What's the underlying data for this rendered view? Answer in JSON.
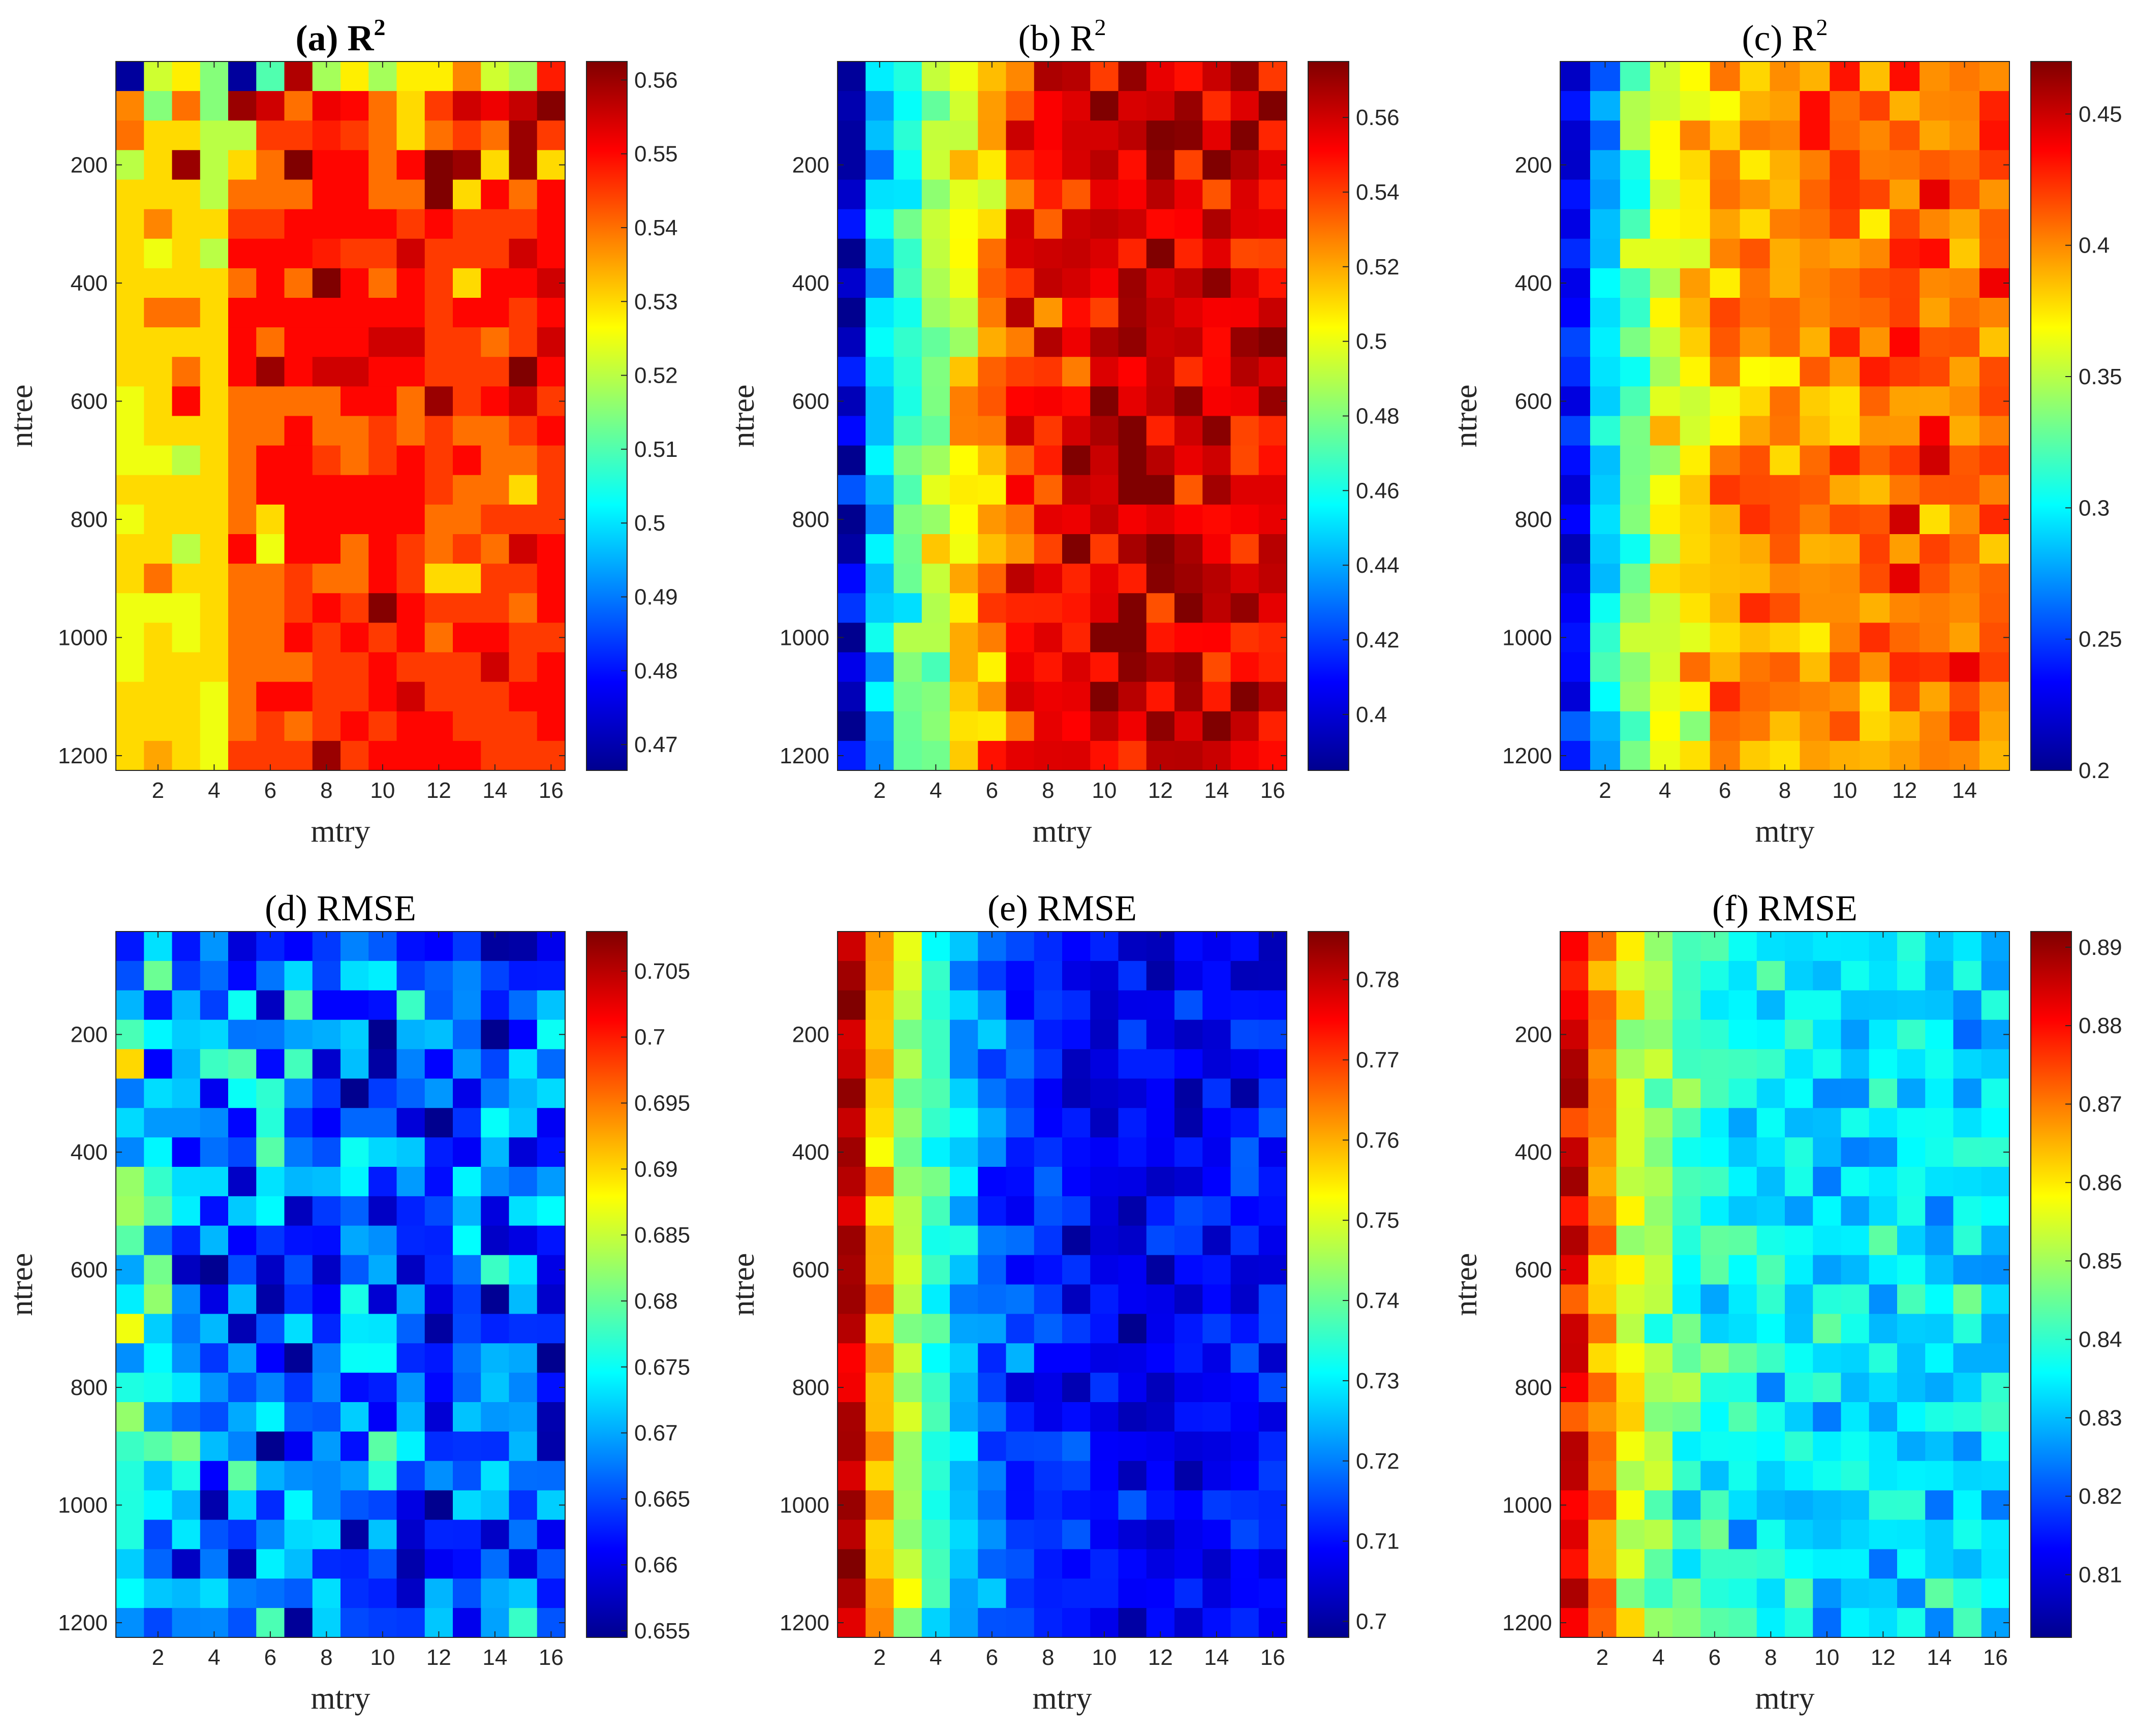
{
  "colormap": "jet",
  "colormap_stops": [
    "#00008f",
    "#0000ff",
    "#00ffff",
    "#ffff00",
    "#ff0000",
    "#800000"
  ],
  "chart_data": [
    {
      "type": "heatmap",
      "title": "(a) R",
      "title_sup": "2",
      "title_bold": true,
      "xlabel": "mtry",
      "ylabel": "ntree",
      "x_ticks": [
        2,
        4,
        6,
        8,
        10,
        12,
        14,
        16
      ],
      "y_ticks": [
        200,
        400,
        600,
        800,
        1000,
        1200
      ],
      "cols": 16,
      "rows": 24,
      "colorbar_ticks": [
        0.47,
        0.48,
        0.49,
        0.5,
        0.51,
        0.52,
        0.53,
        0.54,
        0.55,
        0.56
      ],
      "colorbar_labels": [
        "0.47",
        "0.48",
        "0.49",
        "0.5",
        "0.51",
        "0.52",
        "0.53",
        "0.54",
        "0.55",
        "0.56"
      ],
      "clim": [
        0.4665,
        0.5625
      ],
      "gradient": "x-tilt-random",
      "values": [
        [
          0.468,
          0.522,
          0.528,
          0.515,
          0.468,
          0.51,
          0.558,
          0.518,
          0.528,
          0.518,
          0.528,
          0.528,
          0.538,
          0.522,
          0.518,
          0.548
        ],
        [
          0.538,
          0.515,
          0.54,
          0.515,
          0.56,
          0.555,
          0.54,
          0.552,
          0.55,
          0.54,
          0.53,
          0.545,
          0.555,
          0.552,
          0.556,
          0.562
        ],
        [
          0.54,
          0.53,
          0.53,
          0.52,
          0.52,
          0.545,
          0.545,
          0.548,
          0.545,
          0.54,
          0.53,
          0.54,
          0.545,
          0.54,
          0.56,
          0.545
        ],
        [
          0.52,
          0.53,
          0.56,
          0.52,
          0.53,
          0.54,
          0.566,
          0.55,
          0.55,
          0.54,
          0.55,
          0.566,
          0.56,
          0.53,
          0.56,
          0.53
        ],
        [
          0.53,
          0.53,
          0.53,
          0.52,
          0.54,
          0.54,
          0.54,
          0.55,
          0.55,
          0.54,
          0.54,
          0.569,
          0.53,
          0.55,
          0.54,
          0.55
        ],
        [
          0.53,
          0.538,
          0.53,
          0.53,
          0.545,
          0.545,
          0.55,
          0.55,
          0.55,
          0.55,
          0.545,
          0.55,
          0.545,
          0.545,
          0.545,
          0.55
        ],
        [
          0.53,
          0.525,
          0.53,
          0.52,
          0.55,
          0.55,
          0.55,
          0.548,
          0.545,
          0.545,
          0.555,
          0.545,
          0.545,
          0.545,
          0.555,
          0.55
        ],
        [
          0.53,
          0.53,
          0.53,
          0.53,
          0.54,
          0.55,
          0.54,
          0.565,
          0.55,
          0.54,
          0.55,
          0.545,
          0.53,
          0.55,
          0.55,
          0.555
        ],
        [
          0.53,
          0.54,
          0.54,
          0.53,
          0.55,
          0.55,
          0.55,
          0.55,
          0.55,
          0.55,
          0.55,
          0.545,
          0.55,
          0.55,
          0.545,
          0.55
        ],
        [
          0.53,
          0.53,
          0.53,
          0.53,
          0.55,
          0.54,
          0.55,
          0.55,
          0.55,
          0.555,
          0.555,
          0.545,
          0.545,
          0.54,
          0.545,
          0.555
        ],
        [
          0.53,
          0.53,
          0.54,
          0.53,
          0.55,
          0.56,
          0.55,
          0.555,
          0.555,
          0.55,
          0.55,
          0.545,
          0.545,
          0.545,
          0.565,
          0.55
        ],
        [
          0.525,
          0.53,
          0.55,
          0.53,
          0.54,
          0.54,
          0.54,
          0.54,
          0.55,
          0.55,
          0.54,
          0.56,
          0.545,
          0.55,
          0.555,
          0.545
        ],
        [
          0.525,
          0.53,
          0.53,
          0.53,
          0.54,
          0.54,
          0.55,
          0.54,
          0.54,
          0.545,
          0.54,
          0.545,
          0.54,
          0.54,
          0.545,
          0.55
        ],
        [
          0.525,
          0.525,
          0.52,
          0.53,
          0.54,
          0.55,
          0.55,
          0.545,
          0.54,
          0.545,
          0.55,
          0.545,
          0.55,
          0.54,
          0.54,
          0.545
        ],
        [
          0.53,
          0.53,
          0.53,
          0.53,
          0.54,
          0.55,
          0.55,
          0.55,
          0.55,
          0.55,
          0.55,
          0.545,
          0.54,
          0.54,
          0.53,
          0.545
        ],
        [
          0.525,
          0.53,
          0.53,
          0.53,
          0.54,
          0.53,
          0.55,
          0.55,
          0.55,
          0.55,
          0.55,
          0.54,
          0.54,
          0.545,
          0.545,
          0.545
        ],
        [
          0.53,
          0.53,
          0.52,
          0.53,
          0.55,
          0.525,
          0.55,
          0.55,
          0.54,
          0.55,
          0.545,
          0.54,
          0.545,
          0.54,
          0.555,
          0.55
        ],
        [
          0.53,
          0.54,
          0.53,
          0.53,
          0.54,
          0.54,
          0.545,
          0.54,
          0.54,
          0.55,
          0.545,
          0.53,
          0.53,
          0.545,
          0.545,
          0.55
        ],
        [
          0.525,
          0.525,
          0.525,
          0.53,
          0.54,
          0.54,
          0.545,
          0.55,
          0.545,
          0.562,
          0.55,
          0.545,
          0.545,
          0.545,
          0.54,
          0.55
        ],
        [
          0.525,
          0.53,
          0.525,
          0.53,
          0.54,
          0.54,
          0.55,
          0.545,
          0.55,
          0.545,
          0.55,
          0.54,
          0.55,
          0.55,
          0.545,
          0.545
        ],
        [
          0.525,
          0.53,
          0.53,
          0.53,
          0.54,
          0.54,
          0.54,
          0.545,
          0.545,
          0.55,
          0.545,
          0.545,
          0.545,
          0.555,
          0.545,
          0.55
        ],
        [
          0.53,
          0.53,
          0.53,
          0.525,
          0.54,
          0.55,
          0.55,
          0.545,
          0.545,
          0.55,
          0.555,
          0.545,
          0.545,
          0.545,
          0.55,
          0.55
        ],
        [
          0.53,
          0.53,
          0.53,
          0.525,
          0.54,
          0.545,
          0.54,
          0.545,
          0.55,
          0.545,
          0.55,
          0.55,
          0.545,
          0.545,
          0.545,
          0.55
        ],
        [
          0.53,
          0.535,
          0.53,
          0.525,
          0.545,
          0.545,
          0.545,
          0.56,
          0.545,
          0.55,
          0.55,
          0.55,
          0.55,
          0.545,
          0.545,
          0.545
        ]
      ],
      "cell_seed": 11
    },
    {
      "type": "heatmap",
      "title": "(b) R",
      "title_sup": "2",
      "title_bold": false,
      "xlabel": "mtry",
      "ylabel": "ntree",
      "x_ticks": [
        2,
        4,
        6,
        8,
        10,
        12,
        14,
        16
      ],
      "y_ticks": [
        200,
        400,
        600,
        800,
        1000,
        1200
      ],
      "cols": 16,
      "rows": 24,
      "colorbar_ticks": [
        0.4,
        0.42,
        0.44,
        0.46,
        0.48,
        0.5,
        0.52,
        0.54,
        0.56
      ],
      "colorbar_labels": [
        "0.4",
        "0.42",
        "0.44",
        "0.46",
        "0.48",
        "0.5",
        "0.52",
        "0.54",
        "0.56"
      ],
      "clim": [
        0.385,
        0.575
      ],
      "profile": [
        0.395,
        0.44,
        0.47,
        0.49,
        0.51,
        0.525,
        0.545,
        0.55,
        0.555,
        0.56,
        0.56,
        0.56,
        0.56,
        0.56,
        0.558,
        0.556
      ],
      "jitter": 0.012,
      "cell_seed": 23
    },
    {
      "type": "heatmap",
      "title": "(c) R",
      "title_sup": "2",
      "title_bold": false,
      "xlabel": "mtry",
      "ylabel": "ntree",
      "x_ticks": [
        2,
        4,
        6,
        8,
        10,
        12,
        14
      ],
      "y_ticks": [
        200,
        400,
        600,
        800,
        1000,
        1200
      ],
      "cols": 15,
      "rows": 24,
      "colorbar_ticks": [
        0.2,
        0.25,
        0.3,
        0.35,
        0.4,
        0.45
      ],
      "colorbar_labels": [
        "0.2",
        "0.25",
        "0.3",
        "0.35",
        "0.4",
        "0.45"
      ],
      "clim": [
        0.2,
        0.47
      ],
      "profile": [
        0.23,
        0.29,
        0.33,
        0.36,
        0.375,
        0.39,
        0.395,
        0.4,
        0.4,
        0.405,
        0.405,
        0.41,
        0.41,
        0.41,
        0.41
      ],
      "jitter": 0.015,
      "cell_seed": 37
    },
    {
      "type": "heatmap",
      "title": "(d) RMSE",
      "title_bold": false,
      "xlabel": "mtry",
      "ylabel": "ntree",
      "x_ticks": [
        2,
        4,
        6,
        8,
        10,
        12,
        14,
        16
      ],
      "y_ticks": [
        200,
        400,
        600,
        800,
        1000,
        1200
      ],
      "cols": 16,
      "rows": 24,
      "colorbar_ticks": [
        0.655,
        0.66,
        0.665,
        0.67,
        0.675,
        0.68,
        0.685,
        0.69,
        0.695,
        0.7,
        0.705
      ],
      "colorbar_labels": [
        "0.655",
        "0.66",
        "0.665",
        "0.67",
        "0.675",
        "0.68",
        "0.685",
        "0.69",
        "0.695",
        "0.7",
        "0.705"
      ],
      "clim": [
        0.6545,
        0.708
      ],
      "profile": [
        0.675,
        0.672,
        0.67,
        0.669,
        0.667,
        0.667,
        0.667,
        0.666,
        0.666,
        0.666,
        0.666,
        0.666,
        0.666,
        0.666,
        0.666,
        0.666
      ],
      "jitter": 0.006,
      "cell_seed": 53
    },
    {
      "type": "heatmap",
      "title": "(e) RMSE",
      "title_bold": false,
      "xlabel": "mtry",
      "ylabel": "ntree",
      "x_ticks": [
        2,
        4,
        6,
        8,
        10,
        12,
        14,
        16
      ],
      "y_ticks": [
        200,
        400,
        600,
        800,
        1000,
        1200
      ],
      "cols": 16,
      "rows": 24,
      "colorbar_ticks": [
        0.7,
        0.71,
        0.72,
        0.73,
        0.74,
        0.75,
        0.76,
        0.77,
        0.78
      ],
      "colorbar_labels": [
        "0.7",
        "0.71",
        "0.72",
        "0.73",
        "0.74",
        "0.75",
        "0.76",
        "0.77",
        "0.78"
      ],
      "clim": [
        0.698,
        0.786
      ],
      "profile": [
        0.78,
        0.76,
        0.745,
        0.735,
        0.725,
        0.718,
        0.713,
        0.71,
        0.709,
        0.708,
        0.708,
        0.708,
        0.708,
        0.708,
        0.709,
        0.71
      ],
      "jitter": 0.004,
      "cell_seed": 71
    },
    {
      "type": "heatmap",
      "title": "(f) RMSE",
      "title_bold": false,
      "xlabel": "mtry",
      "ylabel": "ntree",
      "x_ticks": [
        2,
        4,
        6,
        8,
        10,
        12,
        14,
        16
      ],
      "y_ticks": [
        200,
        400,
        600,
        800,
        1000,
        1200
      ],
      "cols": 16,
      "rows": 24,
      "colorbar_ticks": [
        0.81,
        0.82,
        0.83,
        0.84,
        0.85,
        0.86,
        0.87,
        0.88,
        0.89
      ],
      "colorbar_labels": [
        "0.81",
        "0.82",
        "0.83",
        "0.84",
        "0.85",
        "0.86",
        "0.87",
        "0.88",
        "0.89"
      ],
      "clim": [
        0.802,
        0.892
      ],
      "profile": [
        0.882,
        0.868,
        0.858,
        0.848,
        0.842,
        0.838,
        0.836,
        0.835,
        0.834,
        0.834,
        0.833,
        0.833,
        0.833,
        0.833,
        0.833,
        0.833
      ],
      "jitter": 0.005,
      "cell_seed": 89
    }
  ]
}
